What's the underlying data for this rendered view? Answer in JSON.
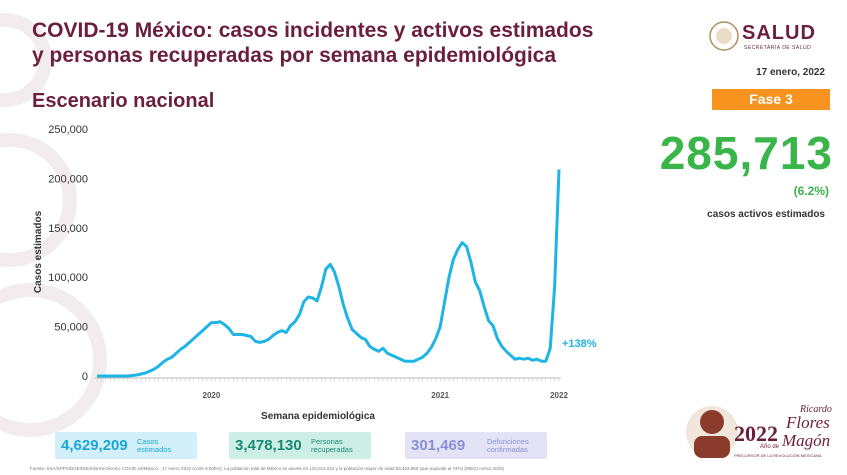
{
  "header": {
    "title_line1": "COVID-19 México: casos incidentes y activos estimados",
    "title_line2": "y personas recuperadas por semana epidemiológica",
    "subtitle": "Escenario nacional",
    "date": "17 enero, 2022",
    "logo": "SALUD",
    "logo_sub": "SECRETARÍA DE SALUD"
  },
  "summary": {
    "phase": "Fase 3",
    "active": "285,713",
    "active_pct": "(6.2%)",
    "active_label": "casos activos estimados"
  },
  "chart_data": {
    "type": "line",
    "ylabel": "Casos estimados",
    "xlabel": "Semana epidemiológica",
    "color": "#1eb4e6",
    "annotation": "+138%",
    "categories": [
      null,
      null,
      null,
      null,
      null,
      null,
      null,
      null,
      null,
      null,
      null,
      null,
      null,
      null,
      null,
      null,
      null,
      null,
      null,
      null,
      null,
      null,
      null,
      null,
      null,
      null,
      "2020",
      null,
      null,
      null,
      null,
      null,
      null,
      null,
      null,
      null,
      null,
      null,
      null,
      null,
      null,
      null,
      null,
      null,
      null,
      null,
      null,
      null,
      null,
      null,
      null,
      null,
      null,
      null,
      null,
      null,
      null,
      null,
      null,
      null,
      null,
      null,
      null,
      null,
      null,
      null,
      null,
      null,
      null,
      null,
      null,
      null,
      null,
      null,
      null,
      null,
      null,
      null,
      "2021",
      null,
      null,
      null,
      null,
      null,
      null,
      null,
      null,
      null,
      null,
      null,
      null,
      null,
      null,
      null,
      null,
      null,
      null,
      null,
      null,
      null,
      null,
      null,
      null,
      null,
      null,
      "2022"
    ],
    "values": [
      0,
      0,
      0,
      0,
      0,
      0,
      0,
      0,
      500,
      1000,
      2000,
      3000,
      5000,
      7000,
      10000,
      14000,
      17000,
      19000,
      23000,
      27000,
      30000,
      34000,
      38000,
      42000,
      46000,
      50000,
      54000,
      54000,
      55000,
      52000,
      48000,
      42000,
      42000,
      42000,
      41000,
      40000,
      35000,
      34000,
      35000,
      37000,
      41000,
      44000,
      46000,
      44000,
      51000,
      55000,
      62000,
      75000,
      80000,
      79000,
      76000,
      90000,
      108000,
      113000,
      105000,
      90000,
      72000,
      58000,
      47000,
      43000,
      39000,
      37000,
      30000,
      27000,
      25000,
      28000,
      23000,
      21000,
      19000,
      17000,
      15000,
      15000,
      15000,
      17000,
      19000,
      23000,
      29000,
      38000,
      50000,
      75000,
      100000,
      118000,
      128000,
      135000,
      131000,
      115000,
      95000,
      86000,
      70000,
      56000,
      51000,
      38000,
      30000,
      25000,
      21000,
      17000,
      18000,
      17000,
      18000,
      16000,
      17000,
      15000,
      15000,
      28000,
      90000,
      209000
    ],
    "ylim": [
      0,
      250000
    ],
    "yticks": [
      0,
      {
        "value": 50000,
        "label": "50,000"
      },
      {
        "value": 100000,
        "label": "100,000"
      },
      {
        "value": 150000,
        "label": "150,000"
      },
      {
        "value": 200000,
        "label": "200,000"
      },
      {
        "value": 250000,
        "label": "250,000"
      }
    ],
    "grid": false
  },
  "stats": [
    {
      "value": "4,629,209",
      "label": "Casos estimados"
    },
    {
      "value": "3,478,130",
      "label": "Personas recuperadas"
    },
    {
      "value": "301,469",
      "label": "Defunciones confirmadas"
    }
  ],
  "footer": {
    "source": "Fuente: SSA/SPPS/DGE/DIE/Informe técnico COVID-19/México - 17 enero 2022 (corte 9:00hrs). La población total de México se asume en 126,014,024 y la población mayor de edad 93,463,950 (que equivale al 74%) (INEGI censo 2020)",
    "emblem_year": "2022",
    "emblem_ano": "Año de",
    "emblem_name1": "Ricardo",
    "emblem_name2": "Flores",
    "emblem_name3": "Magón",
    "emblem_sub": "PRECURSOR DE LA REVOLUCIÓN MEXICANA"
  }
}
